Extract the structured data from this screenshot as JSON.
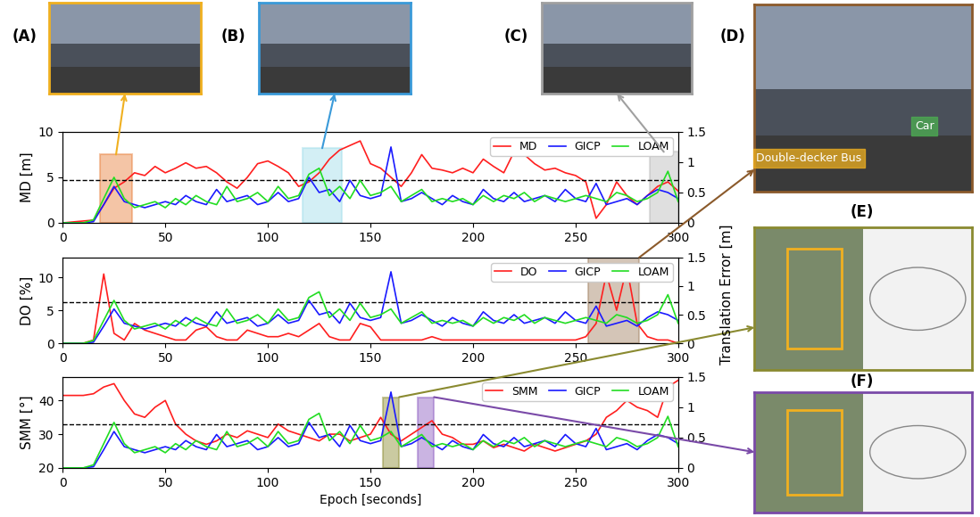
{
  "chart_data": [
    {
      "type": "line",
      "y_label": "MD [m]",
      "x": [
        0,
        5,
        10,
        15,
        20,
        25,
        30,
        35,
        40,
        45,
        50,
        55,
        60,
        65,
        70,
        75,
        80,
        85,
        90,
        95,
        100,
        105,
        110,
        115,
        120,
        125,
        130,
        135,
        140,
        145,
        150,
        155,
        160,
        165,
        170,
        175,
        180,
        185,
        190,
        195,
        200,
        205,
        210,
        215,
        220,
        225,
        230,
        235,
        240,
        245,
        250,
        255,
        260,
        265,
        270,
        275,
        280,
        285,
        290,
        295,
        300
      ],
      "xlim": [
        0,
        300
      ],
      "xticks": [
        0,
        50,
        100,
        150,
        200,
        250,
        300
      ],
      "ylim": [
        0,
        10
      ],
      "yticks": [
        0,
        5,
        10
      ],
      "y2lim": [
        0,
        1.5
      ],
      "y2ticks": [
        0,
        0.5,
        1,
        1.5
      ],
      "legend": "upper right",
      "threshold": 4.7,
      "series": [
        {
          "name": "MD",
          "color": "#ff1f1f",
          "values": [
            0,
            0.1,
            0.2,
            0.3,
            2,
            3.8,
            4.5,
            5.5,
            5.2,
            6.2,
            5.5,
            6,
            6.6,
            6,
            6.2,
            5.5,
            4.5,
            3.8,
            5,
            6.5,
            6.8,
            6.2,
            5.5,
            4,
            4.5,
            5.5,
            7,
            8,
            8.5,
            9,
            6.5,
            6,
            5,
            4,
            5.5,
            7.5,
            6,
            5.8,
            5.5,
            6,
            5.5,
            7,
            6.2,
            5.5,
            7.8,
            7.5,
            6.5,
            5.8,
            6,
            5.5,
            5.2,
            4.5,
            0.5,
            2,
            4.5,
            3,
            2,
            3,
            4,
            4.5,
            3.5
          ]
        },
        {
          "name": "GICP",
          "color": "#1a1aff",
          "axis": "y2",
          "values": [
            0,
            0,
            0,
            0.02,
            0.3,
            0.6,
            0.35,
            0.3,
            0.25,
            0.3,
            0.35,
            0.3,
            0.45,
            0.35,
            0.3,
            0.55,
            0.35,
            0.4,
            0.45,
            0.3,
            0.35,
            0.5,
            0.35,
            0.4,
            0.75,
            0.5,
            0.55,
            0.35,
            0.7,
            0.45,
            0.4,
            0.45,
            1.25,
            0.35,
            0.4,
            0.5,
            0.4,
            0.3,
            0.45,
            0.35,
            0.3,
            0.55,
            0.4,
            0.35,
            0.5,
            0.35,
            0.4,
            0.45,
            0.35,
            0.55,
            0.4,
            0.35,
            0.65,
            0.3,
            0.35,
            0.4,
            0.3,
            0.45,
            0.55,
            0.5,
            0.4
          ]
        },
        {
          "name": "LOAM",
          "color": "#22dd22",
          "axis": "y2",
          "values": [
            0,
            0,
            0,
            0.05,
            0.4,
            0.75,
            0.4,
            0.25,
            0.3,
            0.35,
            0.25,
            0.4,
            0.3,
            0.45,
            0.35,
            0.3,
            0.6,
            0.35,
            0.4,
            0.5,
            0.35,
            0.6,
            0.4,
            0.45,
            0.8,
            0.9,
            0.45,
            0.6,
            0.4,
            0.7,
            0.45,
            0.5,
            0.6,
            0.35,
            0.45,
            0.55,
            0.35,
            0.4,
            0.35,
            0.4,
            0.3,
            0.45,
            0.35,
            0.45,
            0.4,
            0.5,
            0.35,
            0.45,
            0.4,
            0.35,
            0.4,
            0.45,
            0.4,
            0.35,
            0.5,
            0.45,
            0.35,
            0.4,
            0.5,
            0.85,
            0.35
          ]
        }
      ],
      "highlights": [
        {
          "panel": "(A)",
          "x": [
            18,
            34
          ],
          "y": [
            0,
            7.5
          ],
          "color": "#e8803a"
        },
        {
          "panel": "(B)",
          "x": [
            117,
            136
          ],
          "y": [
            0,
            8.2
          ],
          "color": "#9fdcea"
        },
        {
          "panel": "(C)",
          "x": [
            286,
            300
          ],
          "y": [
            0,
            7.8
          ],
          "color": "#b8b8b8"
        }
      ]
    },
    {
      "type": "line",
      "y_label": "DO [%]",
      "x": [
        0,
        5,
        10,
        15,
        20,
        25,
        30,
        35,
        40,
        45,
        50,
        55,
        60,
        65,
        70,
        75,
        80,
        85,
        90,
        95,
        100,
        105,
        110,
        115,
        120,
        125,
        130,
        135,
        140,
        145,
        150,
        155,
        160,
        165,
        170,
        175,
        180,
        185,
        190,
        195,
        200,
        205,
        210,
        215,
        220,
        225,
        230,
        235,
        240,
        245,
        250,
        255,
        260,
        265,
        270,
        275,
        280,
        285,
        290,
        295,
        300
      ],
      "xlim": [
        0,
        300
      ],
      "xticks": [
        0,
        50,
        100,
        150,
        200,
        250,
        300
      ],
      "ylim": [
        0,
        13
      ],
      "yticks": [
        0,
        5,
        10
      ],
      "y2lim": [
        0,
        1.5
      ],
      "y2ticks": [
        0,
        0.5,
        1,
        1.5
      ],
      "legend": "upper right",
      "threshold": 6.2,
      "series": [
        {
          "name": "DO",
          "color": "#ff1f1f",
          "values": [
            0,
            0,
            0,
            0.5,
            10.5,
            1.5,
            0.5,
            3,
            2,
            1.5,
            1,
            0.5,
            0.5,
            2,
            2.5,
            1,
            0.5,
            0.5,
            2,
            1.5,
            1,
            1,
            1.5,
            1,
            2,
            3,
            1,
            0.5,
            0.5,
            3,
            2.5,
            0.5,
            0.5,
            0.5,
            0.5,
            0.5,
            1,
            0.5,
            0.5,
            0.5,
            0.5,
            0.5,
            0.5,
            0.5,
            0.5,
            0.5,
            0.5,
            0.5,
            0.5,
            0.5,
            0.5,
            1,
            3,
            10.5,
            5,
            11.5,
            3,
            1,
            0.5,
            0.5,
            0
          ]
        },
        {
          "name": "GICP",
          "color": "#1a1aff",
          "axis": "y2",
          "values": [
            0,
            0,
            0,
            0.02,
            0.3,
            0.6,
            0.35,
            0.3,
            0.25,
            0.3,
            0.35,
            0.3,
            0.45,
            0.35,
            0.3,
            0.55,
            0.35,
            0.4,
            0.45,
            0.3,
            0.35,
            0.5,
            0.35,
            0.4,
            0.75,
            0.5,
            0.55,
            0.35,
            0.7,
            0.45,
            0.4,
            0.45,
            1.25,
            0.35,
            0.4,
            0.5,
            0.4,
            0.3,
            0.45,
            0.35,
            0.3,
            0.55,
            0.4,
            0.35,
            0.5,
            0.35,
            0.4,
            0.45,
            0.35,
            0.55,
            0.4,
            0.35,
            0.65,
            0.3,
            0.35,
            0.4,
            0.3,
            0.45,
            0.55,
            0.5,
            0.4
          ]
        },
        {
          "name": "LOAM",
          "color": "#22dd22",
          "axis": "y2",
          "values": [
            0,
            0,
            0,
            0.05,
            0.4,
            0.75,
            0.4,
            0.25,
            0.3,
            0.35,
            0.25,
            0.4,
            0.3,
            0.45,
            0.35,
            0.3,
            0.6,
            0.35,
            0.4,
            0.5,
            0.35,
            0.6,
            0.4,
            0.45,
            0.8,
            0.9,
            0.45,
            0.6,
            0.4,
            0.7,
            0.45,
            0.5,
            0.6,
            0.35,
            0.45,
            0.55,
            0.35,
            0.4,
            0.35,
            0.4,
            0.3,
            0.45,
            0.35,
            0.45,
            0.4,
            0.5,
            0.35,
            0.45,
            0.4,
            0.35,
            0.4,
            0.45,
            0.4,
            0.35,
            0.5,
            0.45,
            0.35,
            0.4,
            0.5,
            0.85,
            0.35
          ]
        }
      ],
      "highlights": [
        {
          "panel": "(D)",
          "x": [
            256,
            281
          ],
          "y": [
            0,
            13
          ],
          "color": "#a08060"
        }
      ]
    },
    {
      "type": "line",
      "y_label": "SMM [°]",
      "x_label": "Epoch [seconds]",
      "x": [
        0,
        5,
        10,
        15,
        20,
        25,
        30,
        35,
        40,
        45,
        50,
        55,
        60,
        65,
        70,
        75,
        80,
        85,
        90,
        95,
        100,
        105,
        110,
        115,
        120,
        125,
        130,
        135,
        140,
        145,
        150,
        155,
        160,
        165,
        170,
        175,
        180,
        185,
        190,
        195,
        200,
        205,
        210,
        215,
        220,
        225,
        230,
        235,
        240,
        245,
        250,
        255,
        260,
        265,
        270,
        275,
        280,
        285,
        290,
        295,
        300
      ],
      "xlim": [
        0,
        300
      ],
      "xticks": [
        0,
        50,
        100,
        150,
        200,
        250,
        300
      ],
      "ylim": [
        20,
        47
      ],
      "yticks": [
        20,
        30,
        40
      ],
      "y2lim": [
        0,
        1.5
      ],
      "y2ticks": [
        0,
        0.5,
        1,
        1.5
      ],
      "legend": "upper right",
      "threshold": 33,
      "series": [
        {
          "name": "SMM",
          "color": "#ff1f1f",
          "values": [
            41.5,
            41.5,
            41.5,
            42,
            44,
            45,
            40,
            36,
            35,
            38,
            40,
            33,
            30,
            28,
            27,
            28,
            30,
            29,
            31,
            30,
            29,
            33,
            31,
            30,
            29,
            28,
            30,
            30,
            28,
            29,
            30,
            35,
            30,
            28,
            30,
            32,
            34,
            30,
            29,
            27,
            27,
            28,
            26,
            27,
            26,
            25,
            27,
            26,
            25,
            26,
            27,
            28,
            30,
            35,
            37,
            40,
            38,
            37,
            35,
            44,
            46
          ]
        },
        {
          "name": "GICP",
          "color": "#1a1aff",
          "axis": "y2",
          "values": [
            0,
            0,
            0,
            0.02,
            0.3,
            0.6,
            0.35,
            0.3,
            0.25,
            0.3,
            0.35,
            0.3,
            0.45,
            0.35,
            0.3,
            0.55,
            0.35,
            0.4,
            0.45,
            0.3,
            0.35,
            0.5,
            0.35,
            0.4,
            0.75,
            0.5,
            0.55,
            0.35,
            0.7,
            0.45,
            0.4,
            0.45,
            1.25,
            0.35,
            0.4,
            0.5,
            0.4,
            0.3,
            0.45,
            0.35,
            0.3,
            0.55,
            0.4,
            0.35,
            0.5,
            0.35,
            0.4,
            0.45,
            0.35,
            0.55,
            0.4,
            0.35,
            0.65,
            0.3,
            0.35,
            0.4,
            0.3,
            0.45,
            0.55,
            0.5,
            0.4
          ]
        },
        {
          "name": "LOAM",
          "color": "#22dd22",
          "axis": "y2",
          "values": [
            0,
            0,
            0,
            0.05,
            0.4,
            0.75,
            0.4,
            0.25,
            0.3,
            0.35,
            0.25,
            0.4,
            0.3,
            0.45,
            0.35,
            0.3,
            0.6,
            0.35,
            0.4,
            0.5,
            0.35,
            0.6,
            0.4,
            0.45,
            0.8,
            0.9,
            0.45,
            0.6,
            0.4,
            0.7,
            0.45,
            0.5,
            0.6,
            0.35,
            0.45,
            0.55,
            0.35,
            0.4,
            0.35,
            0.4,
            0.3,
            0.45,
            0.35,
            0.45,
            0.4,
            0.5,
            0.35,
            0.45,
            0.4,
            0.35,
            0.4,
            0.45,
            0.4,
            0.35,
            0.5,
            0.45,
            0.35,
            0.4,
            0.5,
            0.85,
            0.35
          ]
        }
      ],
      "highlights": [
        {
          "panel": "(E)",
          "x": [
            156,
            164
          ],
          "y": [
            20,
            41
          ],
          "color": "#8a8a30"
        },
        {
          "panel": "(F)",
          "x": [
            173,
            181
          ],
          "y": [
            20,
            41
          ],
          "color": "#8a5ac0"
        }
      ]
    }
  ],
  "figure": {
    "y2_label": "Translation Error [m]",
    "panels": [
      {
        "label": "(A)",
        "color": "#f0b020"
      },
      {
        "label": "(B)",
        "color": "#3a9ad9"
      },
      {
        "label": "(C)",
        "color": "#a0a0a0"
      },
      {
        "label": "(D)",
        "color": "#8b5a2b",
        "annotations": [
          {
            "text": "Double-decker Bus",
            "color": "#f0b020"
          },
          {
            "text": "Car",
            "color": "#4caf50"
          }
        ]
      },
      {
        "label": "(E)",
        "color": "#8a8a30"
      },
      {
        "label": "(F)",
        "color": "#7a4aa8"
      }
    ]
  }
}
